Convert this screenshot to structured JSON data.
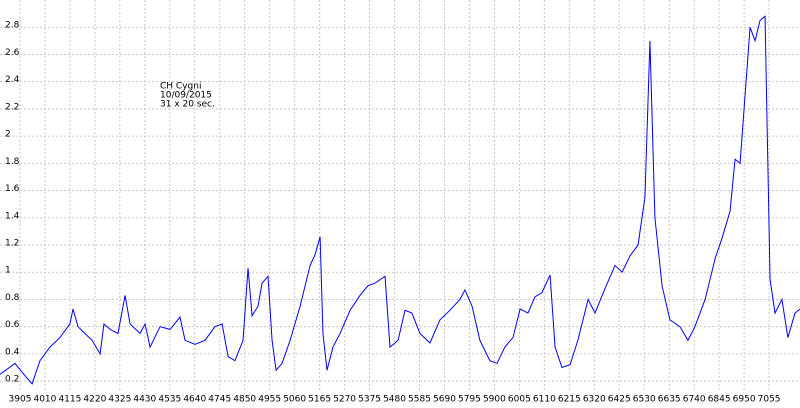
{
  "chart_data": {
    "type": "line",
    "annotations": [
      "CH Cygni",
      "10/09/2015",
      "31 x 20 sec."
    ],
    "xlim": [
      3821,
      7185
    ],
    "ylim": [
      0.12,
      3.0
    ],
    "xticks": [
      3905,
      4010,
      4115,
      4220,
      4325,
      4430,
      4535,
      4640,
      4745,
      4850,
      4955,
      5060,
      5165,
      5270,
      5375,
      5480,
      5585,
      5690,
      5795,
      5900,
      6005,
      6110,
      6215,
      6320,
      6425,
      6530,
      6635,
      6740,
      6845,
      6950,
      7055
    ],
    "yticks": [
      0.2,
      0.4,
      0.6,
      0.8,
      1,
      1.2,
      1.4,
      1.6,
      1.8,
      2,
      2.2,
      2.4,
      2.6,
      2.8
    ],
    "grid": true,
    "series": [
      {
        "color": "#0000ff",
        "x": [
          3821,
          3884,
          3926,
          3956,
          3989,
          4031,
          4073,
          4115,
          4128,
          4149,
          4178,
          4208,
          4242,
          4258,
          4284,
          4317,
          4347,
          4368,
          4410,
          4431,
          4452,
          4494,
          4536,
          4578,
          4599,
          4641,
          4683,
          4725,
          4755,
          4780,
          4809,
          4843,
          4864,
          4881,
          4906,
          4923,
          4948,
          4965,
          4982,
          5007,
          5041,
          5083,
          5125,
          5146,
          5167,
          5179,
          5196,
          5221,
          5251,
          5293,
          5335,
          5368,
          5398,
          5440,
          5461,
          5495,
          5524,
          5553,
          5587,
          5629,
          5671,
          5713,
          5755,
          5776,
          5806,
          5839,
          5881,
          5911,
          5944,
          5978,
          6008,
          6041,
          6071,
          6100,
          6134,
          6155,
          6184,
          6218,
          6251,
          6294,
          6323,
          6365,
          6407,
          6437,
          6470,
          6504,
          6533,
          6554,
          6575,
          6605,
          6638,
          6680,
          6714,
          6743,
          6786,
          6828,
          6857,
          6891,
          6912,
          6933,
          6954,
          6975,
          6996,
          7017,
          7038,
          7059,
          7080,
          7109,
          7134,
          7164,
          7185
        ],
        "values": [
          0.25,
          0.33,
          0.24,
          0.18,
          0.35,
          0.45,
          0.52,
          0.62,
          0.73,
          0.6,
          0.55,
          0.5,
          0.4,
          0.62,
          0.58,
          0.55,
          0.83,
          0.62,
          0.55,
          0.62,
          0.45,
          0.6,
          0.58,
          0.67,
          0.5,
          0.47,
          0.5,
          0.6,
          0.62,
          0.38,
          0.35,
          0.5,
          1.03,
          0.68,
          0.75,
          0.92,
          0.97,
          0.5,
          0.28,
          0.33,
          0.5,
          0.75,
          1.05,
          1.13,
          1.26,
          0.55,
          0.28,
          0.45,
          0.55,
          0.72,
          0.83,
          0.9,
          0.92,
          0.97,
          0.45,
          0.5,
          0.72,
          0.7,
          0.55,
          0.48,
          0.65,
          0.72,
          0.8,
          0.87,
          0.75,
          0.5,
          0.35,
          0.33,
          0.45,
          0.52,
          0.73,
          0.7,
          0.82,
          0.85,
          0.98,
          0.45,
          0.3,
          0.32,
          0.5,
          0.8,
          0.7,
          0.88,
          1.05,
          1.0,
          1.12,
          1.2,
          1.55,
          2.7,
          1.4,
          0.9,
          0.65,
          0.6,
          0.5,
          0.6,
          0.8,
          1.1,
          1.25,
          1.45,
          1.83,
          1.8,
          2.3,
          2.8,
          2.7,
          2.85,
          2.88,
          0.95,
          0.7,
          0.8,
          0.52,
          0.7,
          0.73
        ]
      }
    ]
  }
}
